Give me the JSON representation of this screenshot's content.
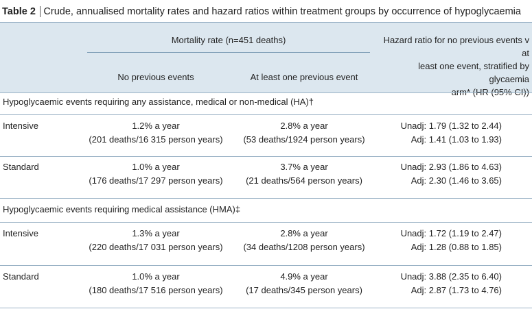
{
  "caption": {
    "label": "Table 2",
    "text": "Crude, annualised mortality rates and hazard ratios within treatment groups by occurrence of hypoglycaemia"
  },
  "header": {
    "mortality_group": "Mortality rate (n=451 deaths)",
    "col_no_previous": "No previous events",
    "col_at_least_one": "At least one previous event",
    "hazard_line1": "Hazard ratio for no previous events v at",
    "hazard_line2": "least one event, stratified by glycaemia",
    "hazard_line3": "arm* (HR (95% CI))"
  },
  "sections": [
    {
      "title": "Hypoglycaemic events requiring any assistance, medical or non-medical (HA)†",
      "rows": [
        {
          "group": "Intensive",
          "no_prev_rate": "1.2% a year",
          "no_prev_detail": "(201 deaths/16 315 person years)",
          "prev_rate": "2.8% a year",
          "prev_detail": "(53 deaths/1924 person years)",
          "unadj": "Unadj: 1.79 (1.32 to 2.44)",
          "adj": "Adj: 1.41 (1.03 to 1.93)"
        },
        {
          "group": "Standard",
          "no_prev_rate": "1.0% a year",
          "no_prev_detail": "(176 deaths/17 297 person years)",
          "prev_rate": "3.7% a year",
          "prev_detail": "(21 deaths/564 person years)",
          "unadj": "Unadj: 2.93 (1.86 to 4.63)",
          "adj": "Adj: 2.30 (1.46 to 3.65)"
        }
      ]
    },
    {
      "title": "Hypoglycaemic events requiring medical assistance (HMA)‡",
      "rows": [
        {
          "group": "Intensive",
          "no_prev_rate": "1.3% a year",
          "no_prev_detail": "(220 deaths/17 031 person years)",
          "prev_rate": "2.8% a year",
          "prev_detail": "(34 deaths/1208 person years)",
          "unadj": "Unadj: 1.72 (1.19 to 2.47)",
          "adj": "Adj: 1.28 (0.88 to 1.85)"
        },
        {
          "group": "Standard",
          "no_prev_rate": "1.0% a year",
          "no_prev_detail": "(180 deaths/17 516 person years)",
          "prev_rate": "4.9% a year",
          "prev_detail": "(17 deaths/345 person years)",
          "unadj": "Unadj: 3.88 (2.35 to 6.40)",
          "adj": "Adj: 2.87 (1.73 to 4.76)"
        }
      ]
    }
  ]
}
